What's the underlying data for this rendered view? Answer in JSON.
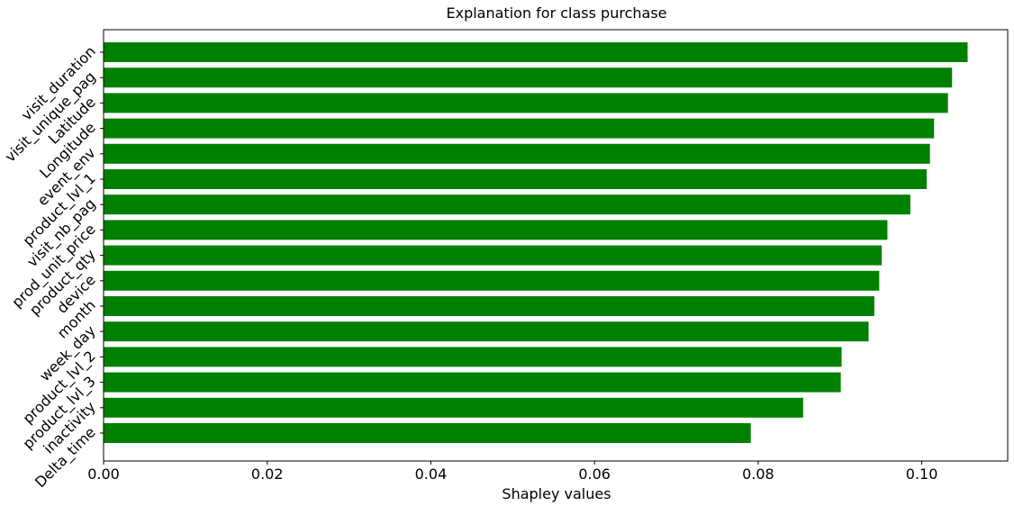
{
  "chart_data": {
    "type": "bar",
    "orientation": "horizontal",
    "title": "Explanation for class purchase",
    "xlabel": "Shapley values",
    "ylabel": "",
    "xlim": [
      0,
      0.1105
    ],
    "xticks": [
      0.0,
      0.02,
      0.04,
      0.06,
      0.08,
      0.1
    ],
    "xtick_labels": [
      "0.00",
      "0.02",
      "0.04",
      "0.06",
      "0.08",
      "0.10"
    ],
    "grid": false,
    "bar_color": "#008000",
    "categories": [
      "visit_duration",
      "visit_unique_pag",
      "Latitude",
      "Longitude",
      "event_env",
      "product_lvl_1",
      "visit_nb_pag",
      "prod_unit_price",
      "product_qty",
      "device",
      "month",
      "week_day",
      "product_lvl_2",
      "product_lvl_3",
      "inactivity",
      "Delta_time"
    ],
    "values": [
      0.1056,
      0.1037,
      0.1032,
      0.1015,
      0.101,
      0.1006,
      0.0986,
      0.0958,
      0.0951,
      0.0948,
      0.0942,
      0.0935,
      0.0902,
      0.0901,
      0.0855,
      0.0791
    ]
  }
}
